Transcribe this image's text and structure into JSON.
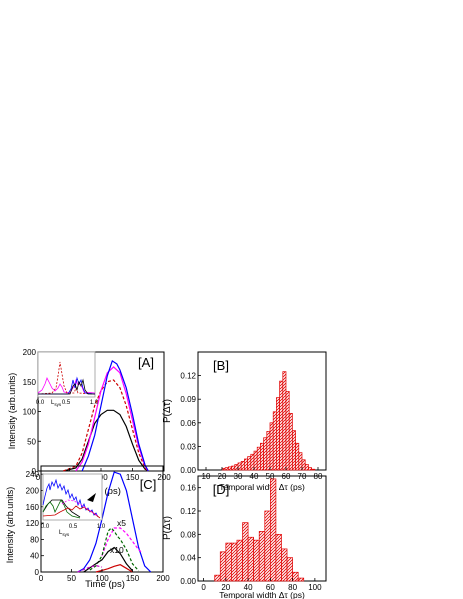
{
  "chart_data": [
    {
      "panel": "[A]",
      "type": "line",
      "xlabel": "Time (ps)",
      "ylabel": "Intensity (arb.units)",
      "xlim": [
        0,
        200
      ],
      "ylim": [
        0,
        200
      ],
      "xticks": [
        0,
        50,
        100,
        150,
        200
      ],
      "yticks": [
        0,
        50,
        100,
        150,
        200
      ],
      "series": [
        {
          "color": "#000000",
          "style": "solid",
          "x": [
            40,
            60,
            70,
            80,
            90,
            100,
            110,
            120,
            130,
            140,
            150,
            160,
            170,
            175
          ],
          "y": [
            0,
            5,
            20,
            50,
            80,
            95,
            102,
            102,
            95,
            75,
            45,
            18,
            3,
            0
          ]
        },
        {
          "color": "#cc0000",
          "style": "dashed",
          "x": [
            40,
            60,
            70,
            80,
            90,
            100,
            110,
            120,
            130,
            140,
            150,
            160,
            170,
            175
          ],
          "y": [
            0,
            8,
            30,
            70,
            110,
            135,
            150,
            153,
            140,
            110,
            70,
            30,
            5,
            0
          ]
        },
        {
          "color": "#ff00ff",
          "style": "solid",
          "x": [
            60,
            70,
            80,
            90,
            100,
            110,
            120,
            130,
            140,
            150,
            160,
            170,
            175
          ],
          "y": [
            0,
            15,
            45,
            90,
            135,
            165,
            175,
            165,
            130,
            85,
            40,
            8,
            0
          ]
        },
        {
          "color": "#0000ff",
          "style": "solid",
          "x": [
            70,
            80,
            90,
            100,
            110,
            118,
            125,
            130,
            140,
            150,
            160,
            170,
            175
          ],
          "y": [
            0,
            25,
            60,
            110,
            160,
            185,
            180,
            170,
            140,
            95,
            45,
            10,
            0
          ]
        }
      ],
      "inset": {
        "xticks": [
          "0.0",
          "0.5",
          "1.0"
        ],
        "xlabel": "L",
        "xlabel_sub": "sys"
      }
    },
    {
      "panel": "[B]",
      "type": "bar",
      "xlabel": "Temporal width Δτ (ps)",
      "ylabel": "P(Δτ)",
      "xlim": [
        5,
        85
      ],
      "ylim": [
        0,
        0.15
      ],
      "xticks": [
        10,
        20,
        30,
        40,
        50,
        60,
        70,
        80
      ],
      "yticks": [
        "0.00",
        "0.03",
        "0.06",
        "0.09",
        "0.12"
      ],
      "bin_width": 2,
      "bin_starts": [
        20,
        22,
        24,
        26,
        28,
        30,
        32,
        34,
        36,
        38,
        40,
        42,
        44,
        46,
        48,
        50,
        52,
        54,
        56,
        58,
        60,
        62,
        64,
        66,
        68,
        70,
        72,
        74,
        76
      ],
      "values": [
        0.002,
        0.003,
        0.004,
        0.005,
        0.007,
        0.009,
        0.011,
        0.014,
        0.017,
        0.02,
        0.024,
        0.029,
        0.034,
        0.041,
        0.049,
        0.06,
        0.074,
        0.092,
        0.113,
        0.125,
        0.1,
        0.072,
        0.05,
        0.034,
        0.022,
        0.013,
        0.007,
        0.003,
        0.001
      ]
    },
    {
      "panel": "[C]",
      "type": "line",
      "xlabel": "Time (ps)",
      "ylabel": "Intensity (arb.units)",
      "xlim": [
        0,
        200
      ],
      "ylim": [
        0,
        260
      ],
      "xticks": [
        0,
        50,
        100,
        150,
        200
      ],
      "yticks": [
        0,
        40,
        80,
        120,
        160,
        200,
        240
      ],
      "annotations": [
        "x5",
        "x10"
      ],
      "series": [
        {
          "color": "#0000ff",
          "style": "solid",
          "x": [
            60,
            70,
            80,
            90,
            100,
            110,
            120,
            130,
            140,
            150,
            160,
            170,
            180
          ],
          "y": [
            0,
            8,
            30,
            70,
            130,
            195,
            245,
            240,
            200,
            130,
            60,
            15,
            0
          ]
        },
        {
          "color": "#ff00ff",
          "style": "dashed",
          "x": [
            100,
            110,
            120,
            130,
            140,
            150,
            160,
            165
          ],
          "y": [
            40,
            80,
            108,
            108,
            95,
            75,
            55,
            48
          ]
        },
        {
          "color": "#006600",
          "style": "dashed",
          "x": [
            80,
            90,
            100,
            105,
            110,
            115,
            120,
            125,
            130,
            140,
            150,
            160
          ],
          "y": [
            5,
            15,
            40,
            70,
            100,
            108,
            100,
            88,
            80,
            55,
            20,
            3
          ]
        },
        {
          "color": "#000000",
          "style": "solid",
          "x": [
            70,
            80,
            90,
            100,
            110,
            120,
            130,
            140,
            150
          ],
          "y": [
            0,
            10,
            20,
            30,
            50,
            60,
            45,
            20,
            3
          ]
        },
        {
          "color": "#cc0000",
          "style": "solid",
          "x": [
            90,
            100,
            110,
            120,
            130,
            140,
            150
          ],
          "y": [
            0,
            4,
            8,
            14,
            18,
            9,
            0
          ]
        },
        {
          "color": "#cc00cc",
          "style": "dashed",
          "x": [
            60,
            70,
            80,
            90,
            100
          ],
          "y": [
            0,
            6,
            12,
            16,
            12
          ]
        }
      ],
      "inset": {
        "xticks": [
          "0.0",
          "0.5",
          "1.0"
        ],
        "xlabel": "L",
        "xlabel_sub": "sys"
      }
    },
    {
      "panel": "[D]",
      "type": "bar",
      "xlabel": "Temporal width Δτ (ps)",
      "ylabel": "P(Δτ)",
      "xlim": [
        -5,
        110
      ],
      "ylim": [
        0,
        0.18
      ],
      "xticks": [
        0,
        20,
        40,
        60,
        80,
        100
      ],
      "yticks": [
        "0.00",
        "0.04",
        "0.08",
        "0.12",
        "0.16"
      ],
      "bin_width": 5,
      "bin_starts": [
        10,
        15,
        20,
        25,
        30,
        35,
        40,
        45,
        50,
        55,
        60,
        65,
        70,
        75,
        80,
        85
      ],
      "values": [
        0.01,
        0.05,
        0.065,
        0.065,
        0.07,
        0.1,
        0.075,
        0.07,
        0.085,
        0.12,
        0.175,
        0.08,
        0.055,
        0.04,
        0.015,
        0.005
      ]
    }
  ]
}
